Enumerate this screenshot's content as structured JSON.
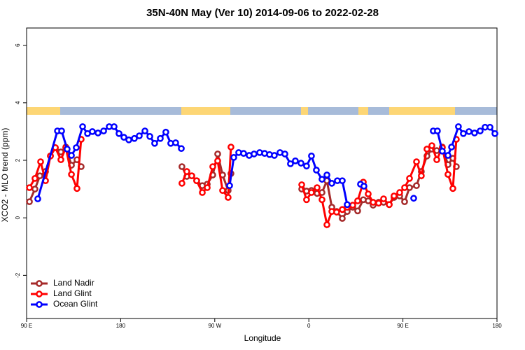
{
  "chart_data": {
    "type": "line",
    "title": "35N-40N May (Ver 10)   2014-09-06 to 2022-02-28",
    "xlabel": "Longitude",
    "ylabel": "XCO2 - MLO trend (ppm)",
    "xlim": [
      90,
      540
    ],
    "ylim": [
      -3.5,
      6.6
    ],
    "xticks": [
      {
        "value": 90,
        "label": "90 E"
      },
      180,
      {
        "value": 270,
        "label": "90 W"
      },
      {
        "value": 360,
        "label": "0"
      },
      {
        "value": 450,
        "label": "90 E"
      },
      {
        "value": 540,
        "label": "180"
      }
    ],
    "yticks": [
      -2,
      0,
      2,
      4,
      6
    ],
    "legend": "bottom-left",
    "series": [
      {
        "name": "Land Nadir",
        "color": "#a52a2a",
        "x": [
          92.7,
          98,
          102.7,
          108.1,
          112.8,
          117.5,
          122.8,
          127.5,
          132.9,
          138.2,
          142.2,
          null,
          238.6,
          243.3,
          248,
          252.7,
          258.1,
          262.8,
          268.1,
          272.8,
          277.5,
          282.8,
          285.5,
          null,
          353.2,
          357.8,
          362.5,
          367.9,
          372.6,
          377.3,
          382,
          386.6,
          392,
          396.7,
          402,
          406.7,
          412.1,
          416.8,
          421.5,
          426.8,
          431.5,
          436.9,
          441.5,
          446.9,
          451.6,
          456.3,
          463,
          467.6,
          473,
          477.7,
          482.4,
          487.7,
          493.1,
          497.8,
          501.1
        ],
        "values": [
          0.56,
          1.0,
          1.46,
          1.61,
          2.15,
          2.44,
          2.29,
          2.46,
          1.83,
          2.02,
          1.78,
          null,
          1.78,
          1.44,
          1.46,
          1.29,
          1.12,
          1.17,
          1.49,
          2.22,
          1.49,
          0.95,
          1.54,
          null,
          1.0,
          0.93,
          0.95,
          0.85,
          0.88,
          1.29,
          0.37,
          0.22,
          -0.02,
          0.22,
          0.37,
          0.24,
          0.63,
          0.59,
          0.44,
          0.54,
          0.54,
          0.46,
          0.71,
          0.76,
          0.56,
          1.05,
          1.12,
          1.61,
          2.15,
          2.39,
          2.34,
          2.46,
          1.85,
          2.07,
          1.78
        ]
      },
      {
        "name": "Land Glint",
        "color": "#ff0000",
        "x": [
          92.7,
          98,
          103.4,
          108.1,
          112.8,
          117.5,
          122.8,
          127.5,
          132.9,
          138.2,
          142.2,
          null,
          238.6,
          243.3,
          248,
          252.7,
          258.1,
          262.8,
          268.1,
          272.8,
          277.5,
          282.8,
          285.5,
          null,
          353.2,
          357.8,
          362.5,
          367.9,
          372.6,
          377.3,
          382,
          386.6,
          392,
          396.7,
          402,
          406.7,
          412.1,
          416.8,
          421.5,
          426.8,
          431.5,
          436.9,
          441.5,
          446.9,
          451.6,
          456.3,
          463,
          467.6,
          473,
          477.7,
          482.4,
          487.7,
          493.1,
          497.8,
          501.1
        ],
        "values": [
          1.05,
          1.37,
          1.95,
          1.29,
          2.15,
          2.44,
          2.02,
          2.44,
          1.51,
          1.02,
          2.73,
          null,
          1.2,
          1.61,
          1.46,
          1.29,
          0.88,
          1.05,
          1.78,
          1.98,
          0.95,
          0.71,
          2.46,
          null,
          1.15,
          0.63,
          0.88,
          1.05,
          0.63,
          -0.24,
          0.22,
          0.2,
          0.29,
          0.37,
          0.44,
          0.59,
          1.24,
          0.83,
          0.54,
          0.51,
          0.66,
          0.46,
          0.76,
          0.88,
          1.05,
          1.37,
          1.95,
          1.46,
          2.39,
          2.51,
          2.02,
          2.44,
          1.51,
          1.02,
          2.73
        ]
      },
      {
        "name": "Ocean Glint",
        "color": "#0000ff",
        "x": [
          100.7,
          119.5,
          123.5,
          128.8,
          132.9,
          137.5,
          143.6,
          148.3,
          152.9,
          158.3,
          163.7,
          169,
          173.7,
          178.4,
          183.1,
          187.8,
          193.1,
          197.8,
          203.2,
          207.9,
          212.5,
          217.9,
          223.2,
          227.9,
          232.6,
          238,
          null,
          284.2,
          288.2,
          292.9,
          297.6,
          302.9,
          307.6,
          313,
          317.7,
          322.4,
          327,
          332.4,
          337.1,
          342.4,
          347.1,
          352.5,
          357.8,
          362.5,
          367.2,
          372.6,
          377.3,
          382,
          387.3,
          392,
          396.7,
          null,
          409.4,
          412.7,
          null,
          460.3,
          null,
          479,
          483,
          487.7,
          493.1,
          496.5,
          503.1,
          507.8,
          513.2,
          518.5,
          523.9,
          528.6,
          533.3,
          538
        ],
        "values": [
          0.66,
          3.02,
          3.02,
          2.39,
          2.17,
          2.44,
          3.17,
          2.93,
          3.0,
          2.95,
          3.02,
          3.17,
          3.17,
          2.93,
          2.8,
          2.71,
          2.76,
          2.85,
          3.02,
          2.83,
          2.59,
          2.76,
          2.98,
          2.59,
          2.61,
          2.41,
          null,
          1.12,
          2.1,
          2.27,
          2.24,
          2.17,
          2.22,
          2.27,
          2.24,
          2.2,
          2.17,
          2.27,
          2.22,
          1.88,
          1.98,
          1.9,
          1.8,
          2.15,
          1.66,
          1.34,
          1.49,
          1.2,
          1.29,
          1.29,
          0.46,
          null,
          1.17,
          1.1,
          null,
          0.68,
          null,
          3.02,
          3.02,
          2.32,
          2.17,
          2.46,
          3.17,
          2.93,
          3.0,
          2.95,
          3.02,
          3.15,
          3.15,
          2.93
        ]
      }
    ]
  }
}
